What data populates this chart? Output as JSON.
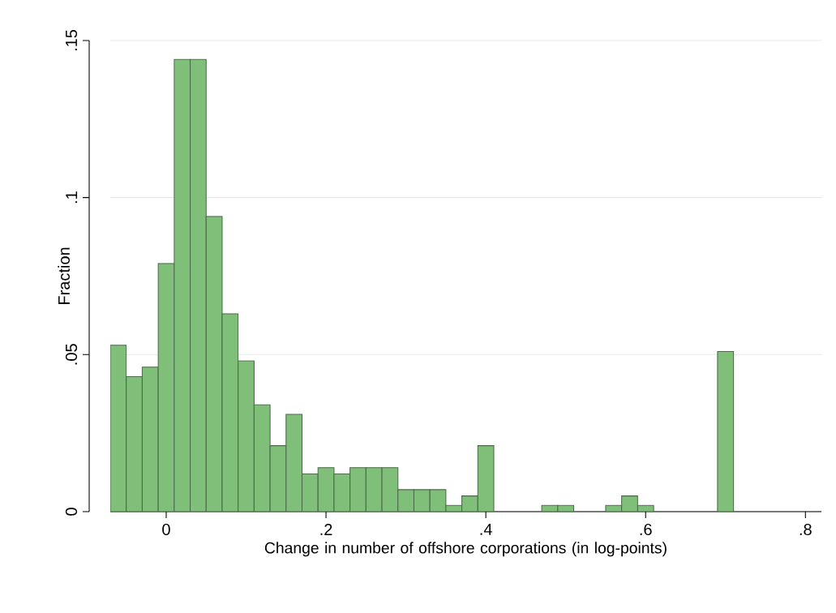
{
  "chart_data": {
    "type": "histogram",
    "xlabel": "Change in number of offshore corporations (in log-points)",
    "ylabel": "Fraction",
    "bins": [
      -0.07,
      -0.05,
      -0.03,
      -0.01,
      0.01,
      0.03,
      0.05,
      0.07,
      0.09,
      0.11,
      0.13,
      0.15,
      0.17,
      0.19,
      0.21,
      0.23,
      0.25,
      0.27,
      0.29,
      0.31,
      0.33,
      0.35,
      0.37,
      0.39,
      0.41,
      0.43,
      0.45,
      0.47,
      0.49,
      0.51,
      0.53,
      0.55,
      0.57,
      0.59,
      0.61,
      0.63,
      0.65,
      0.67,
      0.69,
      0.71
    ],
    "values": [
      0.053,
      0.043,
      0.046,
      0.079,
      0.144,
      0.144,
      0.094,
      0.063,
      0.048,
      0.034,
      0.021,
      0.031,
      0.012,
      0.014,
      0.012,
      0.014,
      0.014,
      0.014,
      0.007,
      0.007,
      0.007,
      0.002,
      0.005,
      0.021,
      0,
      0,
      0,
      0.002,
      0.002,
      0,
      0,
      0.002,
      0.005,
      0.002,
      0,
      0,
      0,
      0,
      0.051
    ],
    "color": "#80bf7a",
    "xlim": [
      -0.07,
      0.82
    ],
    "ylim": [
      0,
      0.15
    ],
    "xticks": [
      0,
      {
        "value": 0.2,
        "label": ".2"
      },
      {
        "value": 0.4,
        "label": ".4"
      },
      {
        "value": 0.6,
        "label": ".6"
      },
      {
        "value": 0.8,
        "label": ".8"
      }
    ],
    "yticks": [
      0,
      {
        "value": 0.05,
        "label": ".05"
      },
      {
        "value": 0.1,
        "label": ".1"
      },
      {
        "value": 0.15,
        "label": ".15"
      }
    ],
    "grid": "y"
  }
}
